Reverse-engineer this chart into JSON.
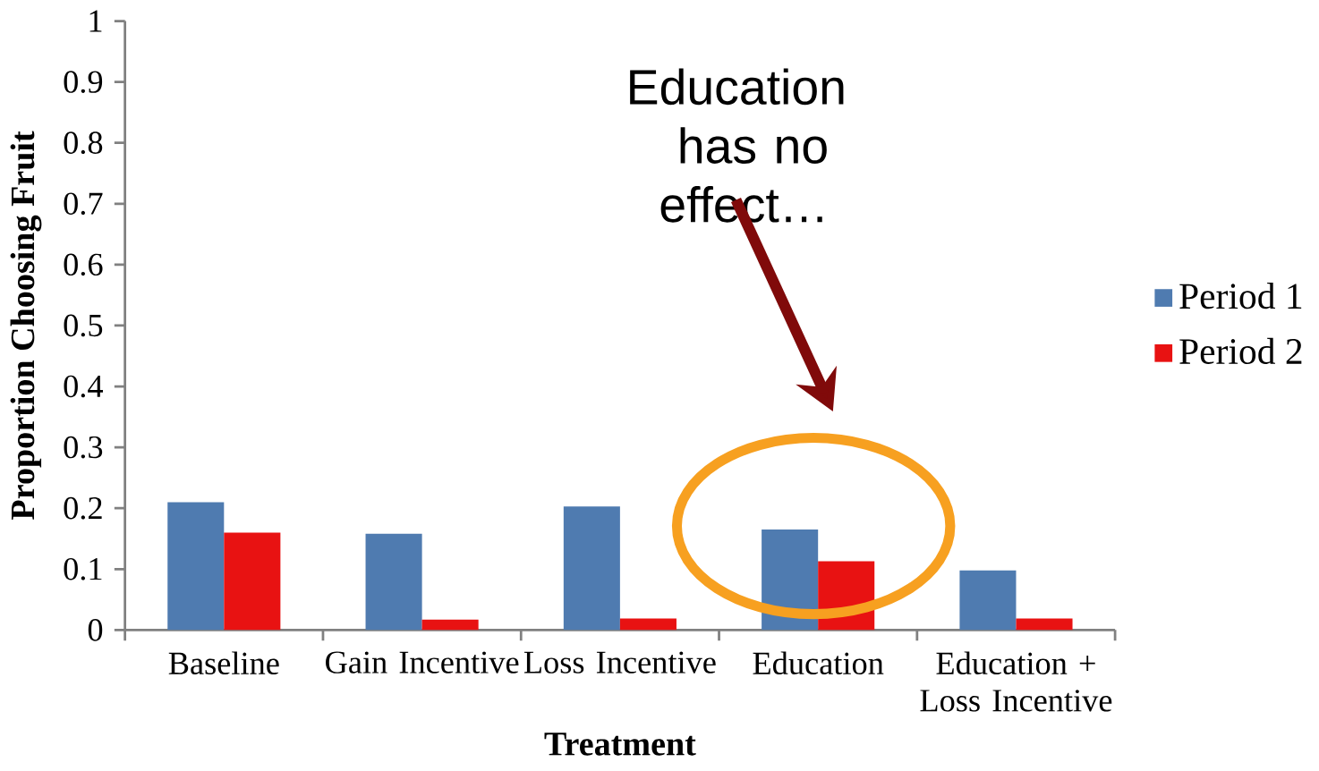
{
  "chart_data": {
    "type": "bar",
    "xlabel": "Treatment",
    "ylabel": "Proportion Choosing Fruit",
    "categories": [
      "Baseline",
      "Gain Incentive",
      "Loss Incentive",
      "Education",
      "Education + Loss Incentive"
    ],
    "series": [
      {
        "name": "Period 1",
        "color": "#4f7bb0",
        "values": [
          0.21,
          0.158,
          0.203,
          0.165,
          0.098
        ]
      },
      {
        "name": "Period 2",
        "color": "#e81212",
        "values": [
          0.16,
          0.017,
          0.019,
          0.113,
          0.019
        ]
      }
    ],
    "ylim": [
      0,
      1
    ],
    "yticks": [
      0,
      0.1,
      0.2,
      0.3,
      0.4,
      0.5,
      0.6,
      0.7,
      0.8,
      0.9,
      1
    ],
    "grid": false,
    "legend": "right",
    "annotations": [
      "Education has no effect…"
    ]
  }
}
